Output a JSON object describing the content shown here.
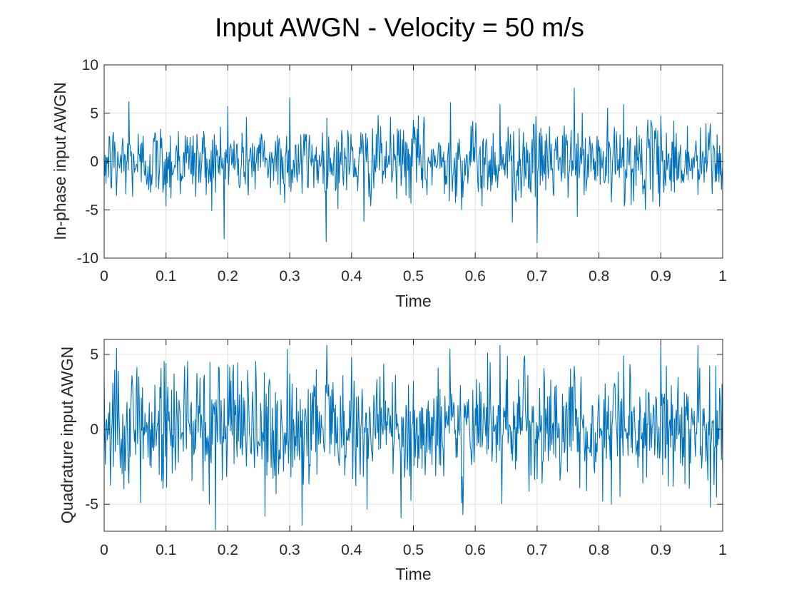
{
  "figure": {
    "title": "Input AWGN - Velocity = 50 m/s",
    "colors": {
      "line": "#0072bd",
      "grid": "#e0e0e0",
      "axis": "#262626",
      "background": "#ffffff"
    }
  },
  "chart_data": [
    {
      "type": "line",
      "title": "",
      "xlabel": "Time",
      "ylabel": "In-phase input AWGN",
      "xlim": [
        0,
        1
      ],
      "ylim": [
        -10,
        10
      ],
      "xticks": [
        "0",
        "0.1",
        "0.2",
        "0.3",
        "0.4",
        "0.5",
        "0.6",
        "0.7",
        "0.8",
        "0.9",
        "1"
      ],
      "yticks": [
        "-10",
        "-5",
        "0",
        "5",
        "10"
      ],
      "grid": true,
      "series_style": "approximately zero-mean white Gaussian noise, about 1000 samples over t = 0..1, std about 2.2",
      "series": [
        {
          "x": [
            0,
            0.02,
            0.04,
            0.06,
            0.08,
            0.1,
            0.12,
            0.14,
            0.16,
            0.18,
            0.2,
            0.22,
            0.24,
            0.26,
            0.28,
            0.3,
            0.32,
            0.34,
            0.36,
            0.38,
            0.4,
            0.42,
            0.44,
            0.46,
            0.48,
            0.5,
            0.52,
            0.54,
            0.56,
            0.58,
            0.6,
            0.62,
            0.64,
            0.66,
            0.68,
            0.7,
            0.72,
            0.74,
            0.76,
            0.78,
            0.8,
            0.82,
            0.84,
            0.86,
            0.88,
            0.9,
            0.92,
            0.94,
            0.96,
            0.98,
            1
          ],
          "y": [
            1.1,
            -3.5,
            6.2,
            -2.1,
            2.4,
            -4.6,
            3.1,
            -1.2,
            0.8,
            -3.2,
            5.7,
            -2.4,
            1.9,
            -0.6,
            2.7,
            6.6,
            -3.3,
            0.4,
            4.5,
            -2.2,
            1.3,
            -6.2,
            2.8,
            0.6,
            -2.5,
            4.3,
            -1.8,
            1.2,
            6.1,
            -3.7,
            2.2,
            -2.9,
            5.9,
            -6.3,
            1.5,
            -8.4,
            3.6,
            -1.1,
            7.6,
            -2.2,
            1.1,
            -4.2,
            5.9,
            -2.5,
            1.4,
            4.7,
            -2.1,
            1.2,
            -3.4,
            3.9,
            -0.6
          ]
        }
      ]
    },
    {
      "type": "line",
      "title": "",
      "xlabel": "Time",
      "ylabel": "Quadrature input AWGN",
      "xlim": [
        0,
        1
      ],
      "ylim": [
        -6.8,
        6.0
      ],
      "xticks": [
        "0",
        "0.1",
        "0.2",
        "0.3",
        "0.4",
        "0.5",
        "0.6",
        "0.7",
        "0.8",
        "0.9",
        "1"
      ],
      "yticks": [
        "-5",
        "0",
        "5"
      ],
      "grid": true,
      "series_style": "approximately zero-mean white Gaussian noise, about 1000 samples over t = 0..1, std about 2.1",
      "series": [
        {
          "x": [
            0,
            0.02,
            0.04,
            0.06,
            0.08,
            0.1,
            0.12,
            0.14,
            0.16,
            0.18,
            0.2,
            0.22,
            0.24,
            0.26,
            0.28,
            0.3,
            0.32,
            0.34,
            0.36,
            0.38,
            0.4,
            0.42,
            0.44,
            0.46,
            0.48,
            0.5,
            0.52,
            0.54,
            0.56,
            0.58,
            0.6,
            0.62,
            0.64,
            0.66,
            0.68,
            0.7,
            0.72,
            0.74,
            0.76,
            0.78,
            0.8,
            0.82,
            0.84,
            0.86,
            0.88,
            0.9,
            0.92,
            0.94,
            0.96,
            0.98,
            1
          ],
          "y": [
            3.4,
            5.4,
            -3.6,
            2.1,
            -1.4,
            4.4,
            -2.2,
            1.5,
            -4.1,
            -6.7,
            4.3,
            -1.3,
            2.5,
            -5.8,
            1.9,
            3.7,
            -6.4,
            2.2,
            5.6,
            -2.4,
            4.8,
            -1.2,
            2.2,
            1.4,
            -5.9,
            3.2,
            -1.6,
            4.1,
            2.4,
            -5.7,
            1.4,
            5.1,
            5.6,
            -2.1,
            4.9,
            -3.3,
            2.2,
            -1.5,
            4.2,
            -4.1,
            2.3,
            -5.0,
            4.9,
            -1.7,
            2.4,
            5.7,
            -3.8,
            1.5,
            5.6,
            -5.2,
            -2.9
          ]
        }
      ]
    }
  ]
}
